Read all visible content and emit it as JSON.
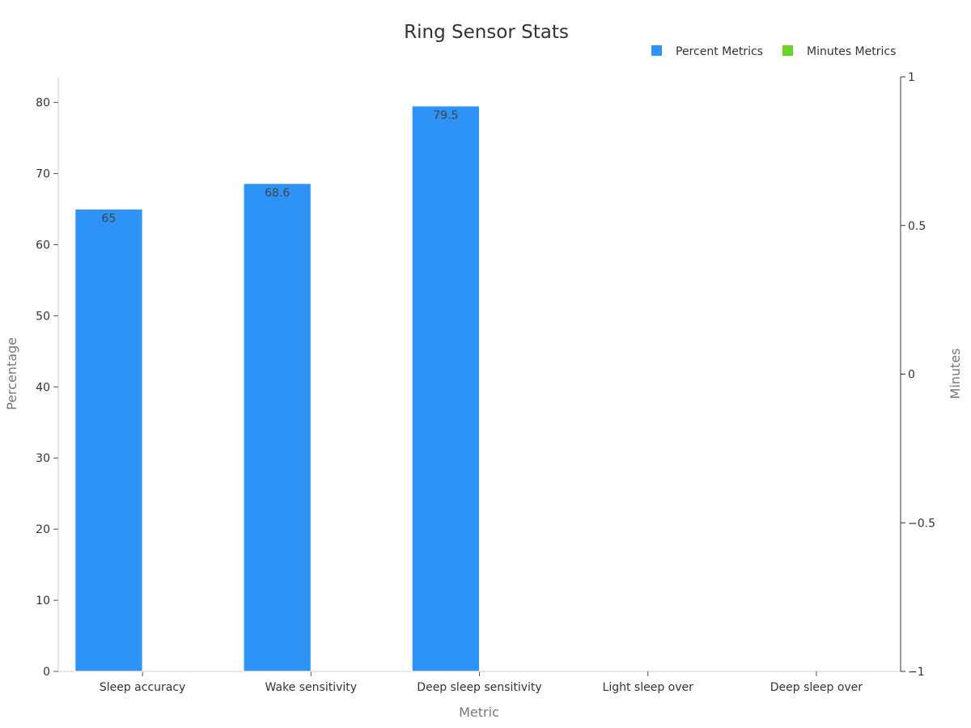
{
  "chart_data": {
    "type": "bar",
    "title": "Ring Sensor Stats",
    "categories": [
      "Sleep accuracy",
      "Wake sensitivity",
      "Deep sleep sensitivity",
      "Light sleep over",
      "Deep sleep over"
    ],
    "series": [
      {
        "name": "Percent Metrics",
        "axis": "left",
        "color": "#2e93f7",
        "values": [
          65,
          68.6,
          79.5,
          null,
          null
        ]
      },
      {
        "name": "Minutes Metrics",
        "axis": "right",
        "color": "#6ad228",
        "values": [
          null,
          null,
          null,
          null,
          null
        ]
      }
    ],
    "xlabel": "Metric",
    "ylabel": "Percentage",
    "y2label": "Minutes",
    "ylim": [
      0,
      83.6
    ],
    "y2lim": [
      -1,
      1
    ],
    "yticks": [
      0,
      10,
      20,
      30,
      40,
      50,
      60,
      70,
      80
    ],
    "y2ticks": [
      "1",
      "0.5",
      "0",
      "−0.5",
      "−1"
    ],
    "y2tick_values": [
      1,
      0.5,
      0,
      -0.5,
      -1
    ],
    "data_labels": [
      "65",
      "68.6",
      "79.5"
    ],
    "legend_position": "top-right",
    "grid": false
  }
}
